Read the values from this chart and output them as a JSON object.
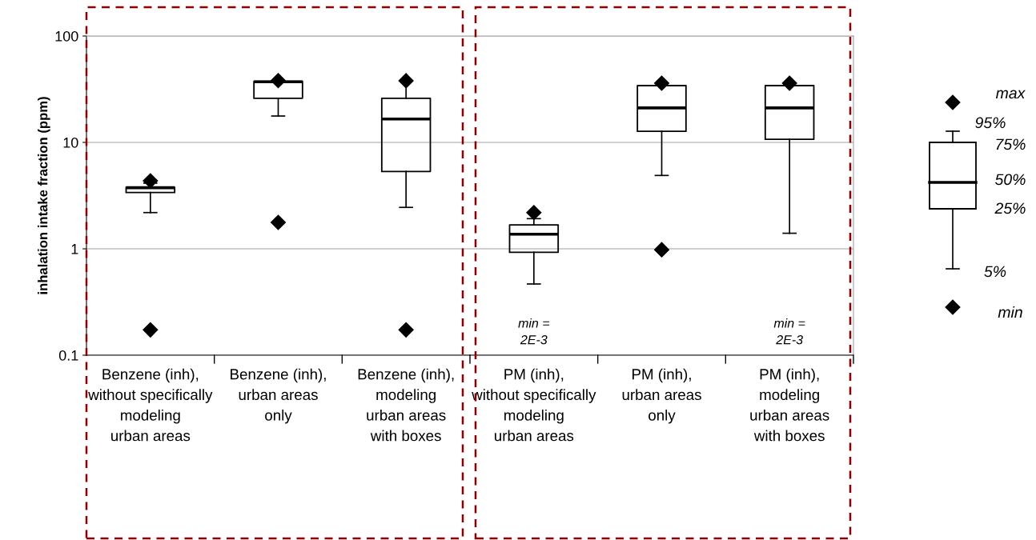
{
  "chart_data": {
    "type": "box",
    "ylabel": "inhalation intake fraction (ppm)",
    "categories": [
      "Benzene (inh),\nwithout specifically\nmodeling\nurban areas",
      "Benzene (inh),\nurban areas\nonly",
      "Benzene (inh),\nmodeling\nurban areas\nwith boxes",
      "PM (inh),\nwithout specifically\nmodeling\nurban areas",
      "PM (inh),\nurban areas\nonly",
      "PM (inh),\nmodeling\nurban areas\nwith boxes"
    ],
    "boxes": [
      {
        "low": 2.19,
        "q1": 3.38,
        "median": 3.75,
        "q3": 3.79,
        "high": 4.14,
        "outliers": [
          4.36,
          0.173
        ]
      },
      {
        "low": 17.7,
        "q1": 26.0,
        "median": 37.1,
        "q3": 37.5,
        "high": 37.5,
        "outliers": [
          38.1,
          1.77
        ]
      },
      {
        "low": 2.45,
        "q1": 5.33,
        "median": 16.6,
        "q3": 26.0,
        "high": 37.9,
        "outliers": [
          38.0,
          0.173
        ]
      },
      {
        "low": 0.467,
        "q1": 0.928,
        "median": 1.37,
        "q3": 1.68,
        "high": 1.92,
        "outliers": [
          2.19
        ]
      },
      {
        "low": 4.89,
        "q1": 12.7,
        "median": 21.1,
        "q3": 34.2,
        "high": 34.2,
        "outliers": [
          36.0,
          0.98
        ]
      },
      {
        "low": 1.4,
        "q1": 10.7,
        "median": 21.1,
        "q3": 34.2,
        "high": 34.2,
        "outliers": [
          36.0
        ]
      }
    ],
    "log": "y",
    "ylim": [
      0.1,
      100
    ],
    "yticks": [
      {
        "value": 0.1,
        "label": "0.1"
      },
      1,
      10,
      100
    ],
    "grid": "y",
    "marker": "diamond",
    "annotations": [
      "min =\n2E-3",
      "min =\n2E-3",
      "max",
      "95%",
      "75%",
      "50%",
      "25%",
      "5%",
      "min"
    ]
  }
}
